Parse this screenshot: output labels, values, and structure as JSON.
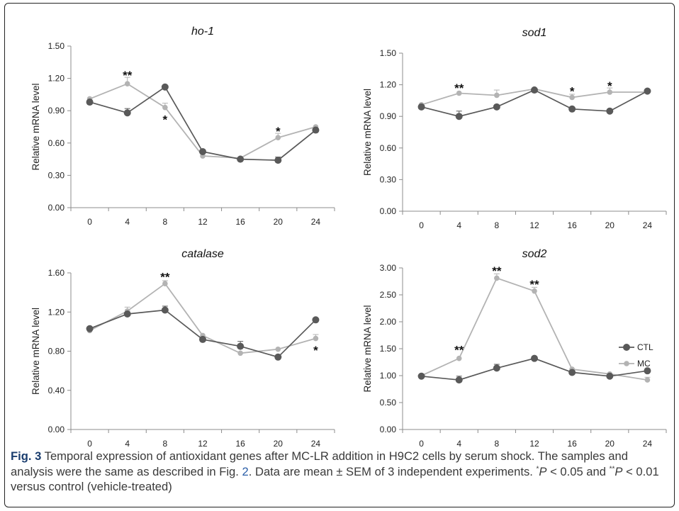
{
  "chart_data": [
    {
      "type": "line",
      "title": "ho-1",
      "ylabel": "Relative mRNA level",
      "x": [
        0,
        4,
        8,
        12,
        16,
        20,
        24
      ],
      "ylim": [
        0,
        1.5
      ],
      "yticks": [
        "0.00",
        "0.30",
        "0.60",
        "0.90",
        "1.20",
        "1.50"
      ],
      "xticks": [
        "0",
        "4",
        "8",
        "12",
        "16",
        "20",
        "24"
      ],
      "series": [
        {
          "name": "CTL",
          "values": [
            0.98,
            0.88,
            1.12,
            0.52,
            0.45,
            0.44,
            0.72
          ],
          "errors": [
            0,
            0.04,
            0,
            0,
            0,
            0.03,
            0
          ]
        },
        {
          "name": "MC",
          "values": [
            1.01,
            1.15,
            0.93,
            0.48,
            0.46,
            0.65,
            0.75
          ],
          "errors": [
            0,
            0.06,
            0.04,
            0,
            0,
            0.04,
            0
          ]
        }
      ],
      "annotations": [
        {
          "x": 4,
          "y": 1.23,
          "text": "**"
        },
        {
          "x": 8,
          "y": 0.82,
          "text": "*"
        },
        {
          "x": 20,
          "y": 0.71,
          "text": "*"
        }
      ]
    },
    {
      "type": "line",
      "title": "sod1",
      "ylabel": "Relative mRNA level",
      "x": [
        0,
        4,
        8,
        12,
        16,
        20,
        24
      ],
      "ylim": [
        0,
        1.5
      ],
      "yticks": [
        "0.00",
        "0.30",
        "0.60",
        "0.90",
        "1.20",
        "1.50"
      ],
      "xticks": [
        "0",
        "4",
        "8",
        "12",
        "16",
        "20",
        "24"
      ],
      "series": [
        {
          "name": "CTL",
          "values": [
            0.99,
            0.9,
            0.99,
            1.15,
            0.97,
            0.95,
            1.14
          ],
          "errors": [
            0,
            0.05,
            0,
            0,
            0,
            0,
            0
          ]
        },
        {
          "name": "MC",
          "values": [
            1.01,
            1.12,
            1.1,
            1.16,
            1.08,
            1.13,
            1.13
          ],
          "errors": [
            0,
            0,
            0.05,
            0,
            0.03,
            0.04,
            0
          ]
        }
      ],
      "annotations": [
        {
          "x": 4,
          "y": 1.17,
          "text": "**"
        },
        {
          "x": 16,
          "y": 1.14,
          "text": "*"
        },
        {
          "x": 20,
          "y": 1.19,
          "text": "*"
        }
      ]
    },
    {
      "type": "line",
      "title": "catalase",
      "ylabel": "Relative mRNA level",
      "x": [
        0,
        4,
        8,
        12,
        16,
        20,
        24
      ],
      "ylim": [
        0,
        1.6
      ],
      "yticks": [
        "0.00",
        "0.40",
        "0.80",
        "1.20",
        "1.60"
      ],
      "xticks": [
        "0",
        "4",
        "8",
        "12",
        "16",
        "20",
        "24"
      ],
      "series": [
        {
          "name": "CTL",
          "values": [
            1.03,
            1.18,
            1.22,
            0.92,
            0.85,
            0.74,
            1.12
          ],
          "errors": [
            0,
            0,
            0.04,
            0,
            0.05,
            0,
            0
          ]
        },
        {
          "name": "MC",
          "values": [
            1.01,
            1.21,
            1.49,
            0.96,
            0.78,
            0.82,
            0.93
          ],
          "errors": [
            0,
            0.04,
            0.03,
            0,
            0,
            0,
            0.04
          ]
        }
      ],
      "annotations": [
        {
          "x": 8,
          "y": 1.56,
          "text": "**"
        },
        {
          "x": 24,
          "y": 0.81,
          "text": "*"
        }
      ]
    },
    {
      "type": "line",
      "title": "sod2",
      "ylabel": "Relative mRNA level",
      "x": [
        0,
        4,
        8,
        12,
        16,
        20,
        24
      ],
      "ylim": [
        0,
        3.0
      ],
      "yticks": [
        "0.00",
        "0.50",
        "1.00",
        "1.50",
        "2.00",
        "2.50",
        "3.00"
      ],
      "xticks": [
        "0",
        "4",
        "8",
        "12",
        "16",
        "20",
        "24"
      ],
      "series": [
        {
          "name": "CTL",
          "values": [
            0.99,
            0.92,
            1.14,
            1.32,
            1.06,
            0.99,
            1.09
          ],
          "errors": [
            0,
            0.07,
            0.07,
            0,
            0,
            0,
            0
          ]
        },
        {
          "name": "MC",
          "values": [
            1.0,
            1.32,
            2.81,
            2.57,
            1.12,
            1.03,
            0.92
          ],
          "errors": [
            0,
            0,
            0.08,
            0.07,
            0,
            0,
            0.05
          ]
        }
      ],
      "annotations": [
        {
          "x": 4,
          "y": 1.48,
          "text": "**"
        },
        {
          "x": 8,
          "y": 2.95,
          "text": "**"
        },
        {
          "x": 12,
          "y": 2.7,
          "text": "**"
        }
      ]
    }
  ],
  "legend": {
    "items": [
      {
        "name": "CTL",
        "color": "#595959"
      },
      {
        "name": "MC",
        "color": "#b3b3b3"
      }
    ]
  },
  "colors": {
    "CTL": "#595959",
    "MC": "#b3b3b3",
    "axis": "#8c8c8c",
    "fig_label": "#1a3d6e",
    "fig_ref": "#2c5fa8"
  },
  "caption": {
    "label": "Fig. 3",
    "part1": " Temporal expression of antioxidant genes after MC-LR addition in H9C2 cells by serum shock. The samples and analysis were the same as described in Fig. ",
    "ref": "2",
    "part2": ". Data are mean ± SEM of 3 independent experiments. ",
    "sup1": "*",
    "p1": "P",
    "part3": " < 0.05 and ",
    "sup2": "**",
    "p2": "P",
    "part4": " < 0.01 versus control (vehicle-treated)"
  }
}
